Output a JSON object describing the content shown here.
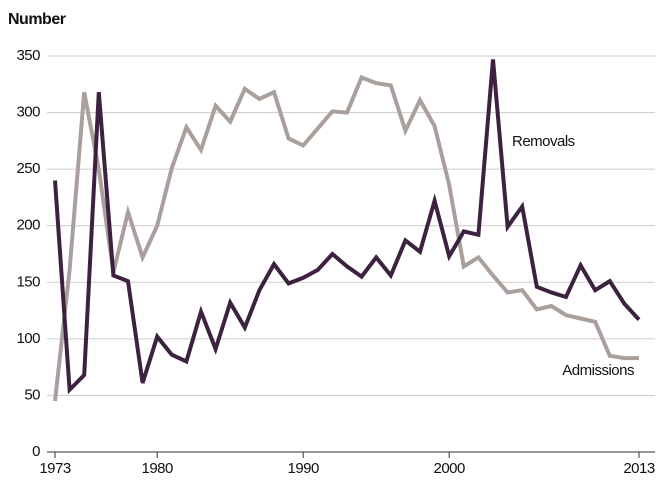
{
  "chart_data": {
    "type": "line",
    "y_label": "Number",
    "x": [
      1973,
      1974,
      1975,
      1976,
      1977,
      1978,
      1979,
      1980,
      1981,
      1982,
      1983,
      1984,
      1985,
      1986,
      1987,
      1988,
      1989,
      1990,
      1991,
      1992,
      1993,
      1994,
      1995,
      1996,
      1997,
      1998,
      1999,
      2000,
      2001,
      2002,
      2003,
      2004,
      2005,
      2006,
      2007,
      2008,
      2009,
      2010,
      2011,
      2012,
      2013
    ],
    "series": [
      {
        "name": "Removals",
        "color": "#3d2240",
        "values": [
          240,
          55,
          68,
          318,
          156,
          151,
          61,
          102,
          86,
          80,
          124,
          91,
          132,
          110,
          143,
          166,
          149,
          154,
          161,
          175,
          164,
          155,
          172,
          156,
          187,
          177,
          222,
          173,
          195,
          192,
          347,
          199,
          217,
          146,
          141,
          137,
          165,
          143,
          151,
          131,
          117
        ]
      },
      {
        "name": "Admissions",
        "color": "#a9a09c",
        "values": [
          45,
          161,
          318,
          250,
          159,
          212,
          172,
          200,
          251,
          287,
          267,
          306,
          292,
          321,
          312,
          318,
          277,
          271,
          286,
          301,
          300,
          331,
          326,
          324,
          284,
          311,
          288,
          236,
          164,
          172,
          156,
          141,
          143,
          126,
          129,
          121,
          118,
          115,
          85,
          83,
          83
        ]
      }
    ],
    "xlim": [
      1973,
      2013
    ],
    "xticks": [
      1973,
      1980,
      1990,
      2000,
      2013
    ],
    "ylim": [
      0,
      350
    ],
    "yticks": [
      0,
      50,
      100,
      150,
      200,
      250,
      300,
      350
    ],
    "grid": true
  }
}
